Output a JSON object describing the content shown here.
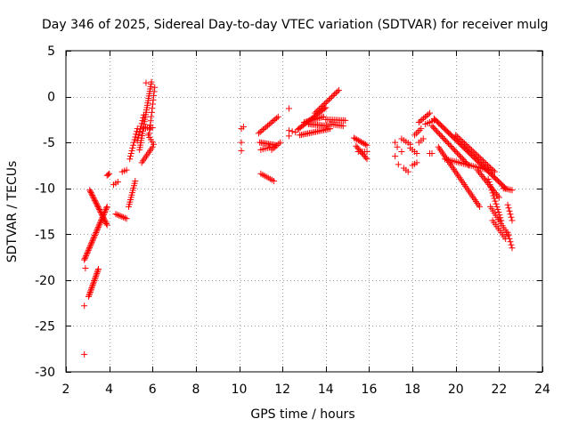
{
  "chart_data": {
    "type": "scatter",
    "title": "Day 346 of 2025, Sidereal Day-to-day VTEC variation (SDTVAR) for receiver mulg",
    "xlabel": "GPS time / hours",
    "ylabel": "SDTVAR / TECUs",
    "xlim": [
      2,
      24
    ],
    "ylim": [
      -30,
      5
    ],
    "xticks": [
      2,
      4,
      6,
      8,
      10,
      12,
      14,
      16,
      18,
      20,
      22,
      24
    ],
    "yticks": [
      -30,
      -25,
      -20,
      -15,
      -10,
      -5,
      0,
      5
    ],
    "grid": true,
    "marker": "+",
    "color": "#ff0000",
    "segments": [
      {
        "x0": 2.85,
        "y0": -17.8,
        "x1": 3.9,
        "y1": -12.0,
        "n": 40
      },
      {
        "x0": 3.05,
        "y0": -21.8,
        "x1": 3.5,
        "y1": -18.8,
        "n": 20
      },
      {
        "x0": 3.1,
        "y0": -10.2,
        "x1": 3.9,
        "y1": -14.0,
        "n": 28
      },
      {
        "x0": 3.9,
        "y0": -8.6,
        "x1": 4.0,
        "y1": -8.4,
        "n": 3
      },
      {
        "x0": 4.2,
        "y0": -9.6,
        "x1": 4.4,
        "y1": -9.3,
        "n": 3
      },
      {
        "x0": 4.3,
        "y0": -12.8,
        "x1": 4.8,
        "y1": -13.3,
        "n": 8
      },
      {
        "x0": 4.6,
        "y0": -8.2,
        "x1": 4.8,
        "y1": -8.0,
        "n": 3
      },
      {
        "x0": 4.9,
        "y0": -12.0,
        "x1": 5.2,
        "y1": -9.2,
        "n": 12
      },
      {
        "x0": 4.95,
        "y0": -6.8,
        "x1": 5.3,
        "y1": -3.5,
        "n": 12
      },
      {
        "x0": 5.4,
        "y0": -5.8,
        "x1": 5.95,
        "y1": 1.6,
        "n": 30
      },
      {
        "x0": 5.3,
        "y0": -4.8,
        "x1": 5.6,
        "y1": -2.0,
        "n": 10
      },
      {
        "x0": 5.6,
        "y0": -3.4,
        "x1": 6.0,
        "y1": -3.4,
        "n": 6
      },
      {
        "x0": 5.5,
        "y0": -7.2,
        "x1": 6.0,
        "y1": -5.5,
        "n": 10
      },
      {
        "x0": 5.8,
        "y0": -4.2,
        "x1": 6.05,
        "y1": -5.2,
        "n": 5
      },
      {
        "x0": 5.85,
        "y0": -4.0,
        "x1": 6.1,
        "y1": 1.0,
        "n": 12
      },
      {
        "x0": 10.1,
        "y0": -3.5,
        "x1": 10.2,
        "y1": -3.3,
        "n": 2
      },
      {
        "x0": 10.1,
        "y0": -5.0,
        "x1": 10.15,
        "y1": -5.0,
        "n": 1
      },
      {
        "x0": 10.1,
        "y0": -5.9,
        "x1": 10.15,
        "y1": -5.9,
        "n": 1
      },
      {
        "x0": 10.9,
        "y0": -4.0,
        "x1": 11.8,
        "y1": -2.2,
        "n": 14
      },
      {
        "x0": 10.95,
        "y0": -5.0,
        "x1": 11.7,
        "y1": -5.3,
        "n": 12
      },
      {
        "x0": 11.0,
        "y0": -5.8,
        "x1": 11.5,
        "y1": -5.5,
        "n": 6
      },
      {
        "x0": 11.0,
        "y0": -8.4,
        "x1": 11.6,
        "y1": -9.2,
        "n": 8
      },
      {
        "x0": 11.5,
        "y0": -5.8,
        "x1": 11.9,
        "y1": -5.0,
        "n": 6
      },
      {
        "x0": 12.3,
        "y0": -1.3,
        "x1": 12.35,
        "y1": -1.3,
        "n": 1
      },
      {
        "x0": 12.3,
        "y0": -3.7,
        "x1": 12.6,
        "y1": -3.9,
        "n": 3
      },
      {
        "x0": 12.3,
        "y0": -4.3,
        "x1": 12.35,
        "y1": -4.3,
        "n": 1
      },
      {
        "x0": 12.7,
        "y0": -3.6,
        "x1": 14.0,
        "y1": -1.2,
        "n": 22
      },
      {
        "x0": 12.8,
        "y0": -4.2,
        "x1": 14.2,
        "y1": -3.5,
        "n": 20
      },
      {
        "x0": 13.0,
        "y0": -2.8,
        "x1": 13.9,
        "y1": -2.2,
        "n": 14
      },
      {
        "x0": 13.2,
        "y0": -3.0,
        "x1": 14.1,
        "y1": -3.2,
        "n": 14
      },
      {
        "x0": 13.5,
        "y0": -1.8,
        "x1": 14.6,
        "y1": 0.7,
        "n": 18
      },
      {
        "x0": 14.0,
        "y0": -2.5,
        "x1": 14.9,
        "y1": -2.6,
        "n": 12
      },
      {
        "x0": 14.2,
        "y0": -3.0,
        "x1": 14.8,
        "y1": -3.2,
        "n": 8
      },
      {
        "x0": 15.3,
        "y0": -4.5,
        "x1": 15.9,
        "y1": -5.3,
        "n": 10
      },
      {
        "x0": 15.4,
        "y0": -5.4,
        "x1": 15.9,
        "y1": -6.8,
        "n": 10
      },
      {
        "x0": 15.5,
        "y0": -6.0,
        "x1": 15.9,
        "y1": -6.0,
        "n": 5
      },
      {
        "x0": 17.2,
        "y0": -5.0,
        "x1": 17.3,
        "y1": -5.5,
        "n": 2
      },
      {
        "x0": 17.2,
        "y0": -6.5,
        "x1": 17.25,
        "y1": -6.5,
        "n": 1
      },
      {
        "x0": 17.35,
        "y0": -7.4,
        "x1": 17.4,
        "y1": -7.4,
        "n": 1
      },
      {
        "x0": 17.5,
        "y0": -4.6,
        "x1": 17.9,
        "y1": -5.2,
        "n": 5
      },
      {
        "x0": 17.6,
        "y0": -7.8,
        "x1": 17.8,
        "y1": -8.2,
        "n": 3
      },
      {
        "x0": 17.9,
        "y0": -5.6,
        "x1": 18.2,
        "y1": -6.2,
        "n": 4
      },
      {
        "x0": 18.0,
        "y0": -7.5,
        "x1": 18.2,
        "y1": -7.2,
        "n": 3
      },
      {
        "x0": 18.1,
        "y0": -4.2,
        "x1": 18.4,
        "y1": -3.5,
        "n": 5
      },
      {
        "x0": 18.3,
        "y0": -2.8,
        "x1": 18.8,
        "y1": -1.8,
        "n": 8
      },
      {
        "x0": 18.3,
        "y0": -5.0,
        "x1": 18.5,
        "y1": -4.6,
        "n": 3
      },
      {
        "x0": 18.6,
        "y0": -3.0,
        "x1": 19.0,
        "y1": -2.6,
        "n": 5
      },
      {
        "x0": 18.8,
        "y0": -6.2,
        "x1": 18.9,
        "y1": -6.2,
        "n": 2
      },
      {
        "x0": 19.0,
        "y0": -2.4,
        "x1": 22.3,
        "y1": -10.0,
        "n": 60
      },
      {
        "x0": 18.9,
        "y0": -3.2,
        "x1": 20.6,
        "y1": -7.5,
        "n": 30
      },
      {
        "x0": 19.2,
        "y0": -5.5,
        "x1": 21.1,
        "y1": -12.0,
        "n": 36
      },
      {
        "x0": 19.5,
        "y0": -6.8,
        "x1": 21.5,
        "y1": -8.0,
        "n": 24
      },
      {
        "x0": 20.0,
        "y0": -4.2,
        "x1": 21.8,
        "y1": -8.2,
        "n": 28
      },
      {
        "x0": 21.0,
        "y0": -8.0,
        "x1": 22.0,
        "y1": -11.0,
        "n": 18
      },
      {
        "x0": 21.5,
        "y0": -9.0,
        "x1": 22.1,
        "y1": -13.5,
        "n": 16
      },
      {
        "x0": 21.6,
        "y0": -12.0,
        "x1": 22.4,
        "y1": -15.0,
        "n": 14
      },
      {
        "x0": 21.7,
        "y0": -13.5,
        "x1": 22.3,
        "y1": -15.5,
        "n": 10
      },
      {
        "x0": 22.2,
        "y0": -10.0,
        "x1": 22.6,
        "y1": -10.2,
        "n": 6
      },
      {
        "x0": 22.4,
        "y0": -11.8,
        "x1": 22.6,
        "y1": -13.5,
        "n": 6
      },
      {
        "x0": 22.4,
        "y0": -14.8,
        "x1": 22.6,
        "y1": -16.5,
        "n": 6
      }
    ],
    "points": [
      {
        "x": 2.85,
        "y": -28.1
      },
      {
        "x": 2.85,
        "y": -22.8
      },
      {
        "x": 2.9,
        "y": -18.7
      },
      {
        "x": 5.7,
        "y": 1.5
      },
      {
        "x": 17.5,
        "y": -6.0
      }
    ]
  }
}
